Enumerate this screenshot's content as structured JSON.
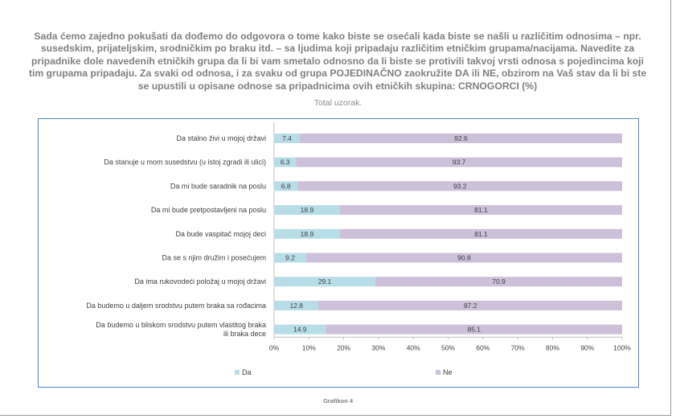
{
  "title": "Sada ćemo zajedno pokušati da dođemo do odgovora o tome kako biste se osećali kada biste se našli u različitim odnosima – npr. susedskim, prijateljskim, srodničkim po braku itd. – sa ljudima koji pripadaju različitim etničkim grupama/nacijama. Navedite za pripadnike dole navedenih etničkih grupa da li bi vam smetalo odnosno da li biste se protivili takvoj vrsti odnosa s pojedincima koji tim grupama pripadaju. Za svaki od odnosa, i za svaku od grupa POJEDINAČNO zaokružite DA ili NE, obzirom na Vaš stav da li bi ste se upustili u opisane odnose sa pripadnicima ovih etničkih skupina: CRNOGORCI (%)",
  "subtitle": "Total uzorak.",
  "footer": "Grafikon 4",
  "colors": {
    "da": "#b7dde8",
    "ne": "#ccc0da",
    "frame": "#4f86c6",
    "axis": "#bfbfbf"
  },
  "chart_data": {
    "type": "bar",
    "orientation": "horizontal",
    "stacked": true,
    "categories": [
      "Da stalno živi u mojoj državi",
      "Da stanuje u mom susedstvu (u istoj zgradi ili ulici)",
      "Da mi bude saradnik na poslu",
      "Da mi bude pretpostavljeni na poslu",
      "Da bude vaspitač mojoj deci",
      "Da se s njim družim i posećujem",
      "Da ima rukovodeći položaj u mojoj državi",
      "Da budemo u daljem srodstvu putem braka sa rođacima",
      "Da budemo u bliskom srodstvu putem vlastitog braka ili braka dece"
    ],
    "series": [
      {
        "name": "Da",
        "values": [
          7.4,
          6.3,
          6.8,
          18.9,
          18.9,
          9.2,
          29.1,
          12.8,
          14.9
        ]
      },
      {
        "name": "Ne",
        "values": [
          92.6,
          93.7,
          93.2,
          81.1,
          81.1,
          90.8,
          70.9,
          87.2,
          85.1
        ]
      }
    ],
    "value_labels": {
      "Da": [
        "7.4",
        "6.3",
        "6.8",
        "18.9",
        "18.9",
        "9.2",
        "29.1",
        "12.8",
        "14.9"
      ],
      "Ne": [
        "92.6",
        "93.7",
        "93.2",
        "81.1",
        "81.1",
        "90.8",
        "70.9",
        "87.2",
        "85.1"
      ]
    },
    "xlim": [
      0,
      100
    ],
    "xticks": [
      "0%",
      "10%",
      "20%",
      "30%",
      "40%",
      "50%",
      "60%",
      "70%",
      "80%",
      "90%",
      "100%"
    ],
    "legend": [
      "Da",
      "Ne"
    ],
    "legend_position": "bottom",
    "grid": false
  }
}
